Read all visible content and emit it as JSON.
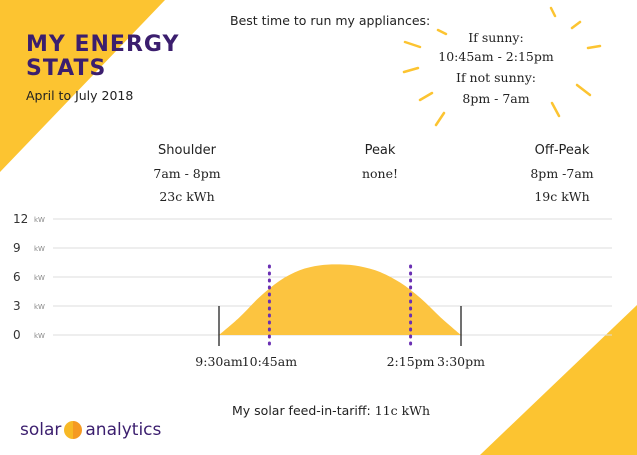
{
  "title": "MY ENERGY STATS",
  "subtitle": "April to July 2018",
  "best_time": {
    "label": "Best time to run my appliances:",
    "lines": [
      "If sunny:",
      "10:45am - 2:15pm",
      "If not sunny:",
      "8pm - 7am"
    ]
  },
  "periods": [
    {
      "name": "Shoulder",
      "hours": "7am - 8pm",
      "rate": "23c kWh"
    },
    {
      "name": "Peak",
      "hours": "none!",
      "rate": ""
    },
    {
      "name": "Off-Peak",
      "hours": "8pm -7am",
      "rate": "19c kWh"
    }
  ],
  "feed_in": {
    "label": "My solar feed-in-tariff:",
    "value": "11c kWh"
  },
  "logo": {
    "left": "solar",
    "right": "analytics"
  },
  "colors": {
    "accent": "#fcc431",
    "fill": "#fcc440",
    "title": "#3b1e6e",
    "markers": "#6a2fb3"
  },
  "chart_data": {
    "type": "area",
    "title": "",
    "xlabel": "",
    "ylabel": "",
    "y_unit": "kW",
    "ylim": [
      0,
      12
    ],
    "yticks": [
      0,
      3,
      6,
      9,
      12
    ],
    "grid": true,
    "x_hours": [
      9.5,
      10,
      10.5,
      11,
      11.5,
      12,
      12.5,
      13,
      13.5,
      14,
      14.5,
      15,
      15.5
    ],
    "values": [
      0,
      1.8,
      3.9,
      5.6,
      6.7,
      7.2,
      7.3,
      7.1,
      6.5,
      5.4,
      3.8,
      1.8,
      0
    ],
    "xtick_labels": [
      {
        "hour": 9.5,
        "label": "9:30am",
        "line": "solid"
      },
      {
        "hour": 10.75,
        "label": "10:45am",
        "line": "dotted"
      },
      {
        "hour": 14.25,
        "label": "2:15pm",
        "line": "dotted"
      },
      {
        "hour": 15.5,
        "label": "3:30pm",
        "line": "solid"
      }
    ]
  }
}
